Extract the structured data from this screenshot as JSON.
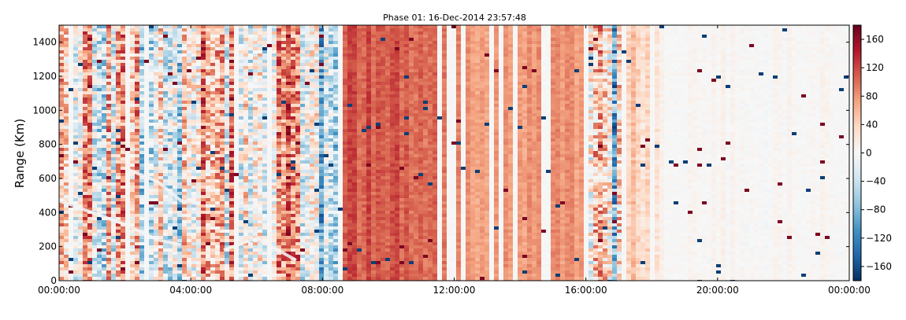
{
  "chart_data": {
    "type": "heatmap",
    "title": "Phase 01: 16-Dec-2014 23:57:48",
    "xlabel": "",
    "ylabel": "Range (Km)",
    "x_ticks": [
      "00:00:00",
      "04:00:00",
      "08:00:00",
      "12:00:00",
      "16:00:00",
      "20:00:00",
      "00:00:00"
    ],
    "x_range_hours": [
      0,
      24
    ],
    "y_ticks": [
      0,
      200,
      400,
      600,
      800,
      1000,
      1200,
      1400
    ],
    "ylim": [
      0,
      1500
    ],
    "colorbar": {
      "ticks": [
        -160,
        -120,
        -80,
        -40,
        0,
        40,
        80,
        120,
        160
      ],
      "range": [
        -180,
        180
      ],
      "colormap": "RdBu_r"
    },
    "grid": false,
    "columns": [
      {
        "hours": [
          0.0,
          1.0
        ],
        "mean": 40,
        "spread": 150
      },
      {
        "hours": [
          1.0,
          2.0
        ],
        "mean": 20,
        "spread": 160
      },
      {
        "hours": [
          2.0,
          3.0
        ],
        "mean": 20,
        "spread": 150
      },
      {
        "hours": [
          3.0,
          4.0
        ],
        "mean": 10,
        "spread": 150
      },
      {
        "hours": [
          4.0,
          5.5
        ],
        "mean": 20,
        "spread": 160
      },
      {
        "hours": [
          5.5,
          7.8
        ],
        "mean": 40,
        "spread": 150
      },
      {
        "hours": [
          7.8,
          8.4
        ],
        "mean": -60,
        "spread": 140
      },
      {
        "hours": [
          8.4,
          12.0
        ],
        "mean": 110,
        "spread": 30
      },
      {
        "hours": [
          12.0,
          15.8
        ],
        "mean": 80,
        "spread": 25
      },
      {
        "hours": [
          15.8,
          17.2
        ],
        "mean": -20,
        "spread": 170
      },
      {
        "hours": [
          17.2,
          18.2
        ],
        "mean": 40,
        "spread": 40
      },
      {
        "hours": [
          18.2,
          24.0
        ],
        "mean": 3,
        "spread": 12
      }
    ],
    "traces": [
      {
        "name": "",
        "points": [
          [
            0.0,
            470
          ],
          [
            1.0,
            400
          ],
          [
            2.0,
            330
          ],
          [
            3.0,
            240
          ],
          [
            3.7,
            210
          ]
        ]
      },
      {
        "name": "",
        "points": [
          [
            2.0,
            660
          ],
          [
            3.0,
            580
          ],
          [
            3.7,
            470
          ],
          [
            4.3,
            450
          ]
        ]
      },
      {
        "name": "",
        "points": [
          [
            5.0,
            180
          ],
          [
            6.0,
            250
          ],
          [
            7.2,
            120
          ]
        ]
      }
    ]
  }
}
